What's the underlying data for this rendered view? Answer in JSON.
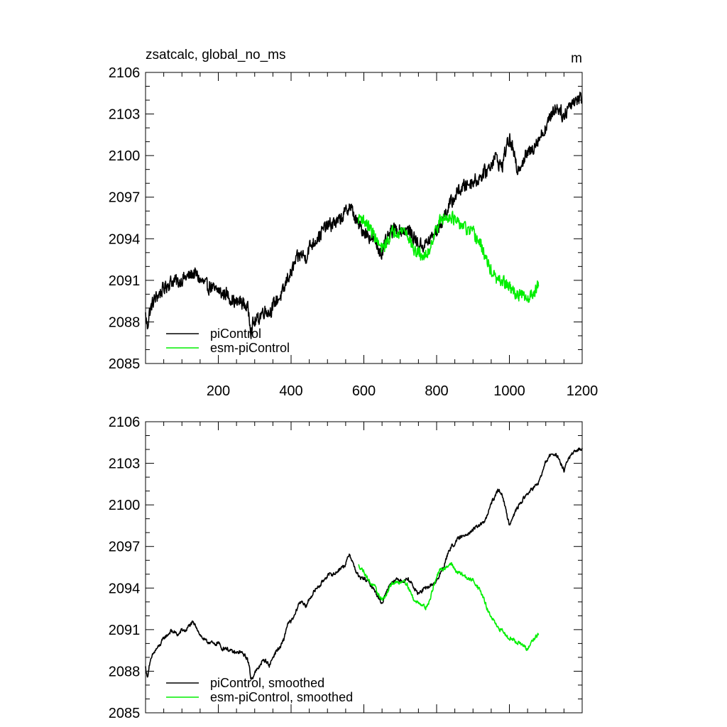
{
  "colors": {
    "piControl": "#000000",
    "esm": "#00ee00",
    "frame": "#000000"
  },
  "chart_data": [
    {
      "type": "line",
      "title": "zsatcalc, global_no_ms",
      "units": "m",
      "xlim": [
        0,
        1200
      ],
      "ylim": [
        2085,
        2106
      ],
      "yticks": [
        2085,
        2088,
        2091,
        2094,
        2097,
        2100,
        2103,
        2106
      ],
      "xtick_labels": [
        "200",
        "400",
        "600",
        "800",
        "1000",
        "1200"
      ],
      "xticks": [
        200,
        400,
        600,
        800,
        1000,
        1200
      ],
      "grid": false,
      "legend_position": "bottom-left",
      "series": [
        {
          "name": "piControl",
          "color": "#000000",
          "x": [
            0,
            5,
            10,
            20,
            30,
            40,
            50,
            60,
            70,
            80,
            90,
            100,
            110,
            120,
            130,
            140,
            150,
            160,
            170,
            180,
            190,
            200,
            210,
            220,
            230,
            240,
            250,
            260,
            270,
            280,
            285,
            290,
            295,
            300,
            310,
            320,
            330,
            340,
            350,
            360,
            370,
            380,
            390,
            400,
            410,
            420,
            430,
            440,
            450,
            460,
            470,
            480,
            490,
            500,
            510,
            520,
            530,
            540,
            550,
            560,
            570,
            580,
            590,
            600,
            610,
            620,
            630,
            640,
            650,
            660,
            670,
            680,
            690,
            700,
            710,
            720,
            730,
            740,
            750,
            760,
            770,
            780,
            790,
            800,
            810,
            820,
            830,
            840,
            850,
            860,
            870,
            880,
            890,
            900,
            910,
            920,
            930,
            940,
            950,
            960,
            970,
            980,
            990,
            1000,
            1010,
            1020,
            1030,
            1040,
            1050,
            1060,
            1070,
            1080,
            1090,
            1100,
            1110,
            1120,
            1130,
            1140,
            1150,
            1160,
            1170,
            1180,
            1190,
            1200
          ],
          "y": [
            2088.5,
            2087.6,
            2088.6,
            2089.4,
            2089.8,
            2090.1,
            2090.4,
            2090.7,
            2090.9,
            2091.0,
            2090.8,
            2091.1,
            2091.2,
            2091.3,
            2091.5,
            2091.4,
            2091.0,
            2090.8,
            2090.5,
            2090.6,
            2090.2,
            2090.3,
            2090.0,
            2090.1,
            2089.8,
            2089.6,
            2089.3,
            2089.5,
            2089.3,
            2089.0,
            2088.5,
            2087.4,
            2087.8,
            2088.0,
            2088.2,
            2088.7,
            2088.9,
            2088.7,
            2089.1,
            2089.6,
            2089.8,
            2090.2,
            2091.2,
            2091.5,
            2092.2,
            2092.7,
            2092.9,
            2092.6,
            2093.4,
            2093.7,
            2094.0,
            2094.3,
            2094.7,
            2094.9,
            2095.0,
            2095.2,
            2095.2,
            2095.6,
            2095.9,
            2096.4,
            2095.9,
            2095.2,
            2094.8,
            2094.6,
            2094.3,
            2094.1,
            2093.8,
            2093.3,
            2093.0,
            2093.7,
            2094.2,
            2094.6,
            2094.7,
            2094.6,
            2094.6,
            2094.6,
            2094.4,
            2094.0,
            2093.6,
            2093.5,
            2093.6,
            2093.9,
            2094.2,
            2094.6,
            2095.0,
            2095.6,
            2096.2,
            2096.6,
            2097.0,
            2097.5,
            2097.6,
            2097.9,
            2098.0,
            2098.2,
            2098.2,
            2098.5,
            2098.7,
            2099.0,
            2099.4,
            2100.0,
            2099.5,
            2099.2,
            2100.5,
            2101.2,
            2100.4,
            2099.0,
            2099.4,
            2099.7,
            2100.2,
            2100.3,
            2100.9,
            2101.2,
            2101.6,
            2102.0,
            2102.6,
            2103.3,
            2103.5,
            2103.3,
            2102.7,
            2103.5,
            2103.8,
            2104.0,
            2104.1,
            2104.2
          ],
          "noise": 0.45
        },
        {
          "name": "esm-piControl",
          "color": "#00ee00",
          "x": [
            585,
            590,
            600,
            610,
            620,
            630,
            640,
            650,
            660,
            670,
            680,
            690,
            700,
            710,
            720,
            730,
            740,
            750,
            760,
            770,
            780,
            790,
            800,
            810,
            820,
            830,
            840,
            850,
            860,
            870,
            880,
            890,
            900,
            910,
            920,
            930,
            940,
            950,
            960,
            970,
            980,
            990,
            1000,
            1010,
            1020,
            1030,
            1040,
            1050,
            1060,
            1070,
            1080
          ],
          "y": [
            2095.4,
            2095.6,
            2095.3,
            2095.0,
            2094.6,
            2094.2,
            2093.6,
            2093.2,
            2093.6,
            2094.1,
            2094.5,
            2094.6,
            2094.5,
            2094.7,
            2094.3,
            2093.7,
            2093.0,
            2093.0,
            2092.8,
            2092.7,
            2093.2,
            2094.1,
            2094.8,
            2095.3,
            2095.4,
            2095.6,
            2095.7,
            2095.3,
            2095.0,
            2095.0,
            2094.7,
            2094.5,
            2094.4,
            2094.0,
            2093.6,
            2093.0,
            2092.2,
            2091.7,
            2091.2,
            2090.9,
            2091.0,
            2090.7,
            2090.5,
            2090.2,
            2090.0,
            2089.9,
            2089.8,
            2089.6,
            2090.0,
            2090.3,
            2090.6
          ],
          "noise": 0.4
        }
      ]
    },
    {
      "type": "line",
      "title": "",
      "xlim": [
        0,
        1200
      ],
      "ylim": [
        2085,
        2106
      ],
      "yticks": [
        2085,
        2088,
        2091,
        2094,
        2097,
        2100,
        2103,
        2106
      ],
      "xticks": [
        200,
        400,
        600,
        800,
        1000,
        1200
      ],
      "grid": false,
      "legend_position": "bottom-left",
      "series": [
        {
          "name": "piControl, smoothed",
          "color": "#000000",
          "x": [
            0,
            5,
            10,
            20,
            30,
            40,
            50,
            60,
            70,
            80,
            90,
            100,
            110,
            120,
            130,
            140,
            150,
            160,
            170,
            180,
            190,
            200,
            210,
            220,
            230,
            240,
            250,
            260,
            270,
            280,
            285,
            290,
            295,
            300,
            310,
            320,
            330,
            340,
            350,
            360,
            370,
            380,
            390,
            400,
            410,
            420,
            430,
            440,
            450,
            460,
            470,
            480,
            490,
            500,
            510,
            520,
            530,
            540,
            550,
            560,
            570,
            580,
            590,
            600,
            610,
            620,
            630,
            640,
            650,
            660,
            670,
            680,
            690,
            700,
            710,
            720,
            730,
            740,
            750,
            760,
            770,
            780,
            790,
            800,
            810,
            820,
            830,
            840,
            850,
            860,
            870,
            880,
            890,
            900,
            910,
            920,
            930,
            940,
            950,
            960,
            970,
            980,
            990,
            1000,
            1010,
            1020,
            1030,
            1040,
            1050,
            1060,
            1070,
            1080,
            1090,
            1100,
            1110,
            1120,
            1130,
            1140,
            1150,
            1160,
            1170,
            1180,
            1190,
            1200
          ],
          "y": [
            2088.3,
            2087.5,
            2088.4,
            2089.2,
            2089.6,
            2089.9,
            2090.4,
            2090.6,
            2090.9,
            2090.8,
            2090.6,
            2091.0,
            2090.9,
            2091.3,
            2091.5,
            2091.2,
            2090.6,
            2090.3,
            2090.1,
            2090.1,
            2089.9,
            2090.1,
            2089.6,
            2089.7,
            2089.5,
            2089.4,
            2089.3,
            2089.4,
            2089.2,
            2088.9,
            2088.3,
            2087.4,
            2087.6,
            2087.9,
            2088.2,
            2088.7,
            2088.8,
            2088.4,
            2089.0,
            2089.5,
            2089.7,
            2090.3,
            2091.4,
            2091.6,
            2092.0,
            2092.8,
            2093.1,
            2092.6,
            2093.2,
            2093.6,
            2094.0,
            2094.2,
            2094.6,
            2094.9,
            2095.0,
            2095.0,
            2095.3,
            2095.5,
            2095.7,
            2096.5,
            2095.8,
            2095.1,
            2094.7,
            2094.7,
            2094.5,
            2094.2,
            2093.8,
            2093.3,
            2092.9,
            2093.6,
            2094.2,
            2094.5,
            2094.6,
            2094.6,
            2094.5,
            2094.7,
            2094.4,
            2093.9,
            2093.6,
            2093.8,
            2094.0,
            2094.1,
            2094.3,
            2094.5,
            2095.0,
            2095.6,
            2096.4,
            2097.0,
            2097.2,
            2097.6,
            2097.7,
            2097.9,
            2098.0,
            2098.2,
            2098.4,
            2098.6,
            2098.7,
            2099.3,
            2100.1,
            2100.6,
            2101.1,
            2100.8,
            2099.6,
            2098.6,
            2099.2,
            2099.7,
            2100.1,
            2100.5,
            2100.8,
            2101.1,
            2101.3,
            2101.6,
            2102.3,
            2103.1,
            2103.5,
            2103.7,
            2103.6,
            2103.0,
            2102.5,
            2103.2,
            2103.6,
            2103.8,
            2104.0,
            2104.1
          ],
          "noise": 0.12
        },
        {
          "name": "esm-piControl, smoothed",
          "color": "#00ee00",
          "x": [
            585,
            590,
            600,
            610,
            620,
            630,
            640,
            650,
            660,
            670,
            680,
            690,
            700,
            710,
            720,
            730,
            740,
            750,
            760,
            770,
            780,
            790,
            800,
            810,
            820,
            830,
            840,
            850,
            860,
            870,
            880,
            890,
            900,
            910,
            920,
            930,
            940,
            950,
            960,
            970,
            980,
            990,
            1000,
            1010,
            1020,
            1030,
            1040,
            1050,
            1060,
            1070,
            1080
          ],
          "y": [
            2095.6,
            2095.5,
            2095.2,
            2094.7,
            2094.3,
            2094.1,
            2093.5,
            2093.2,
            2093.4,
            2094.0,
            2094.4,
            2094.4,
            2094.4,
            2094.6,
            2094.2,
            2093.6,
            2093.0,
            2093.0,
            2092.8,
            2092.6,
            2093.0,
            2094.0,
            2094.8,
            2095.3,
            2095.4,
            2095.6,
            2095.8,
            2095.3,
            2095.1,
            2095.0,
            2094.8,
            2094.6,
            2094.6,
            2094.2,
            2093.8,
            2093.2,
            2092.4,
            2091.9,
            2091.5,
            2091.0,
            2091.0,
            2090.6,
            2090.4,
            2090.3,
            2090.1,
            2090.0,
            2089.8,
            2089.5,
            2090.1,
            2090.4,
            2090.7
          ],
          "noise": 0.12
        }
      ]
    }
  ]
}
